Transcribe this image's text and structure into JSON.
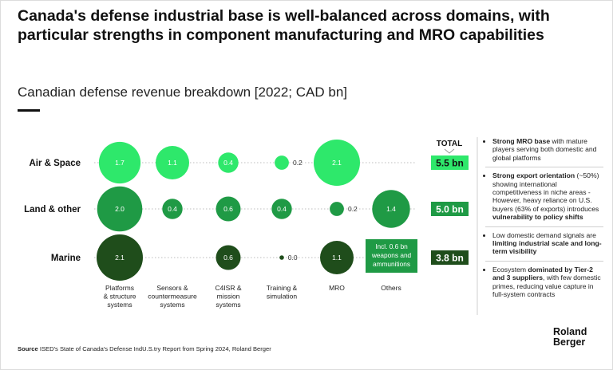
{
  "title": "Canada's defense industrial base is well-balanced across domains, with particular strengths in component manufacturing and MRO capabilities",
  "subtitle": "Canadian defense revenue breakdown [2022; CAD bn]",
  "chart_data": {
    "type": "bubble",
    "rows": [
      "Air & Space",
      "Land & other",
      "Marine"
    ],
    "columns": [
      "Platforms & structure systems",
      "Sensors & countermeasure systems",
      "C4ISR & mission systems",
      "Training & simulation",
      "MRO",
      "Others"
    ],
    "column_label_lines": [
      [
        "Platforms",
        "& structure",
        "systems"
      ],
      [
        "Sensors &",
        "countermeasure",
        "systems"
      ],
      [
        "C4ISR &",
        "mission",
        "systems"
      ],
      [
        "Training &",
        "simulation"
      ],
      [
        "MRO"
      ],
      [
        "Others"
      ]
    ],
    "values": [
      [
        1.7,
        1.1,
        0.4,
        0.2,
        2.1,
        null
      ],
      [
        2.0,
        0.4,
        0.6,
        0.4,
        0.2,
        1.4
      ],
      [
        2.1,
        null,
        0.6,
        0.0,
        1.1,
        null
      ]
    ],
    "value_labels": [
      [
        "1.7",
        "1.1",
        "0.4",
        "0.2",
        "2.1",
        ""
      ],
      [
        "2.0",
        "0.4",
        "0.6",
        "0.4",
        "0.2",
        "1.4"
      ],
      [
        "2.1",
        "",
        "0.6",
        "0.0",
        "1.1",
        ""
      ]
    ],
    "others_note_lines": [
      "Incl. 0.6 bn",
      "weapons and",
      "ammunitions"
    ],
    "total_header": "TOTAL",
    "totals": [
      5.5,
      5.0,
      3.8
    ],
    "total_labels": [
      "5.5 bn",
      "5.0 bn",
      "3.8 bn"
    ],
    "row_colors": [
      "#2ee86b",
      "#1f9a45",
      "#1f4d1b"
    ]
  },
  "notes": {
    "n1_bold": "Strong MRO base",
    "n1_text": " with mature players serving both domestic and global platforms",
    "n2_bold": "Strong export orientation",
    "n2_text": " (~50%) showing international competitiveness in niche areas - However, heavy reliance on U.S. buyers (63% of exports) introduces ",
    "n2_bold2": "vulnerability to policy shifts",
    "n3_text": "Low domestic demand signals are ",
    "n3_bold": "limiting industrial scale and long-term visibility",
    "n4_text": "Ecosystem ",
    "n4_bold": "dominated by Tier-2 and 3 suppliers",
    "n4_text2": ", with few domestic primes, reducing value capture in full-system contracts"
  },
  "source_label": "Source",
  "source_text": " ISED's State of Canada's Defense IndU.S.try Report from Spring 2024, Roland Berger",
  "logo_line1": "Roland",
  "logo_line2": "Berger"
}
